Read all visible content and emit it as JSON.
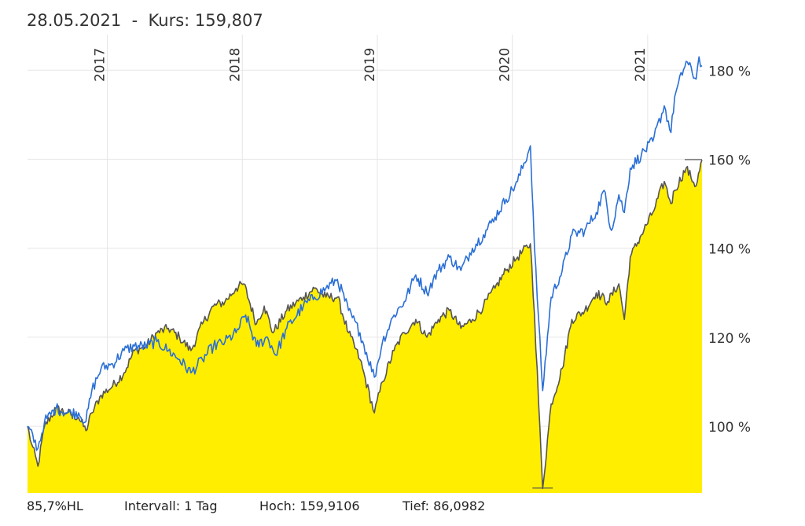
{
  "header": {
    "date": "28.05.2021",
    "separator": "-",
    "price_label": "Kurs: 159,807"
  },
  "footer": {
    "hl": "85,7%HL",
    "interval": "Intervall: 1 Tag",
    "high": "Hoch: 159,9106",
    "low": "Tief: 86,0982"
  },
  "colors": {
    "fill": "#ffee00",
    "fund_line": "#555555",
    "benchmark_line": "#2a6fd6",
    "grid": "#e6e6e6"
  },
  "chart_data": {
    "type": "area",
    "x_axis_labels": [
      "2017",
      "2018",
      "2019",
      "2020",
      "2021"
    ],
    "y_tick_labels": [
      "100 %",
      "120 %",
      "140 %",
      "160 %",
      "180 %"
    ],
    "y_ticks": [
      100,
      120,
      140,
      160,
      180
    ],
    "xlim": [
      "2016-05-30",
      "2021-05-28"
    ],
    "ylim": [
      85,
      188
    ],
    "x_label_dates": [
      "2017-01-01",
      "2018-01-01",
      "2019-01-01",
      "2020-01-01",
      "2021-01-01"
    ],
    "grid": true,
    "high": 159.9106,
    "low": 86.0982,
    "series": [
      {
        "type": "area",
        "points": [
          [
            "2016-05-30",
            100
          ],
          [
            "2016-06-10",
            96
          ],
          [
            "2016-06-27",
            91
          ],
          [
            "2016-07-15",
            100
          ],
          [
            "2016-08-15",
            104
          ],
          [
            "2016-09-15",
            103
          ],
          [
            "2016-10-15",
            102
          ],
          [
            "2016-11-04",
            99
          ],
          [
            "2016-11-20",
            103
          ],
          [
            "2016-12-15",
            107
          ],
          [
            "2017-01-15",
            109
          ],
          [
            "2017-02-15",
            112
          ],
          [
            "2017-03-15",
            117
          ],
          [
            "2017-04-15",
            118
          ],
          [
            "2017-05-15",
            121
          ],
          [
            "2017-06-15",
            122
          ],
          [
            "2017-07-15",
            120
          ],
          [
            "2017-08-15",
            117
          ],
          [
            "2017-09-15",
            123
          ],
          [
            "2017-10-15",
            127
          ],
          [
            "2017-11-15",
            128
          ],
          [
            "2017-12-15",
            131
          ],
          [
            "2018-01-05",
            132
          ],
          [
            "2018-02-08",
            123
          ],
          [
            "2018-03-01",
            127
          ],
          [
            "2018-03-25",
            121
          ],
          [
            "2018-05-01",
            126
          ],
          [
            "2018-06-15",
            129
          ],
          [
            "2018-07-15",
            131
          ],
          [
            "2018-08-15",
            129
          ],
          [
            "2018-09-15",
            129
          ],
          [
            "2018-10-15",
            121
          ],
          [
            "2018-11-15",
            115
          ],
          [
            "2018-12-24",
            103
          ],
          [
            "2019-01-15",
            110
          ],
          [
            "2019-02-15",
            117
          ],
          [
            "2019-03-15",
            121
          ],
          [
            "2019-04-15",
            124
          ],
          [
            "2019-05-15",
            120
          ],
          [
            "2019-06-15",
            124
          ],
          [
            "2019-07-15",
            126
          ],
          [
            "2019-08-15",
            122
          ],
          [
            "2019-09-15",
            124
          ],
          [
            "2019-10-15",
            127
          ],
          [
            "2019-11-15",
            131
          ],
          [
            "2019-12-15",
            135
          ],
          [
            "2020-01-15",
            138
          ],
          [
            "2020-02-19",
            141
          ],
          [
            "2020-03-01",
            125
          ],
          [
            "2020-03-23",
            86
          ],
          [
            "2020-04-15",
            105
          ],
          [
            "2020-05-15",
            113
          ],
          [
            "2020-06-10",
            124
          ],
          [
            "2020-07-15",
            126
          ],
          [
            "2020-08-15",
            130
          ],
          [
            "2020-09-15",
            128
          ],
          [
            "2020-10-15",
            132
          ],
          [
            "2020-10-30",
            124
          ],
          [
            "2020-11-15",
            138
          ],
          [
            "2020-12-15",
            143
          ],
          [
            "2021-01-15",
            148
          ],
          [
            "2021-02-15",
            155
          ],
          [
            "2021-03-05",
            150
          ],
          [
            "2021-03-15",
            153
          ],
          [
            "2021-04-15",
            158
          ],
          [
            "2021-05-12",
            154
          ],
          [
            "2021-05-28",
            159.807
          ]
        ]
      },
      {
        "type": "line",
        "points": [
          [
            "2016-05-30",
            100
          ],
          [
            "2016-06-27",
            95
          ],
          [
            "2016-07-15",
            101
          ],
          [
            "2016-08-15",
            104
          ],
          [
            "2016-09-15",
            103
          ],
          [
            "2016-10-15",
            103
          ],
          [
            "2016-11-04",
            101
          ],
          [
            "2016-11-20",
            108
          ],
          [
            "2016-12-15",
            113
          ],
          [
            "2017-01-15",
            114
          ],
          [
            "2017-02-15",
            117
          ],
          [
            "2017-03-15",
            118
          ],
          [
            "2017-04-15",
            118
          ],
          [
            "2017-05-15",
            119
          ],
          [
            "2017-06-15",
            117
          ],
          [
            "2017-07-15",
            115
          ],
          [
            "2017-08-15",
            112
          ],
          [
            "2017-09-15",
            115
          ],
          [
            "2017-10-15",
            118
          ],
          [
            "2017-11-15",
            119
          ],
          [
            "2017-12-15",
            121
          ],
          [
            "2018-01-10",
            125
          ],
          [
            "2018-02-08",
            118
          ],
          [
            "2018-03-10",
            120
          ],
          [
            "2018-04-01",
            116
          ],
          [
            "2018-05-01",
            122
          ],
          [
            "2018-06-15",
            127
          ],
          [
            "2018-07-15",
            129
          ],
          [
            "2018-08-15",
            131
          ],
          [
            "2018-09-15",
            133
          ],
          [
            "2018-10-15",
            126
          ],
          [
            "2018-11-15",
            121
          ],
          [
            "2018-12-24",
            111
          ],
          [
            "2019-01-15",
            119
          ],
          [
            "2019-02-15",
            125
          ],
          [
            "2019-03-15",
            128
          ],
          [
            "2019-04-15",
            134
          ],
          [
            "2019-05-15",
            130
          ],
          [
            "2019-06-15",
            135
          ],
          [
            "2019-07-15",
            138
          ],
          [
            "2019-08-15",
            135
          ],
          [
            "2019-09-15",
            140
          ],
          [
            "2019-10-15",
            143
          ],
          [
            "2019-11-15",
            147
          ],
          [
            "2019-12-15",
            151
          ],
          [
            "2020-01-15",
            155
          ],
          [
            "2020-02-19",
            163
          ],
          [
            "2020-03-01",
            140
          ],
          [
            "2020-03-23",
            108
          ],
          [
            "2020-04-15",
            129
          ],
          [
            "2020-05-15",
            135
          ],
          [
            "2020-06-10",
            143
          ],
          [
            "2020-07-15",
            144
          ],
          [
            "2020-08-15",
            148
          ],
          [
            "2020-09-05",
            153
          ],
          [
            "2020-09-25",
            144
          ],
          [
            "2020-10-15",
            152
          ],
          [
            "2020-10-30",
            148
          ],
          [
            "2020-11-15",
            158
          ],
          [
            "2020-12-15",
            161
          ],
          [
            "2021-01-15",
            164
          ],
          [
            "2021-02-15",
            172
          ],
          [
            "2021-03-05",
            166
          ],
          [
            "2021-03-15",
            174
          ],
          [
            "2021-04-15",
            182
          ],
          [
            "2021-05-12",
            178
          ],
          [
            "2021-05-20",
            183
          ],
          [
            "2021-05-28",
            181
          ]
        ]
      }
    ]
  }
}
